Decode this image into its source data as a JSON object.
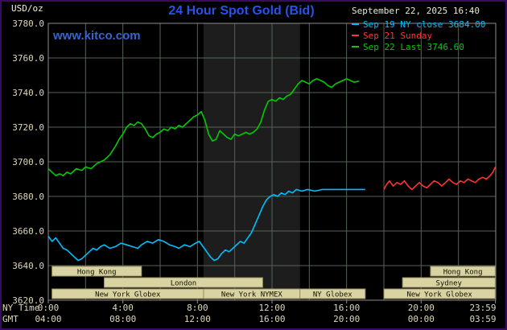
{
  "header": {
    "units_label": "USD/oz",
    "title": "24 Hour Spot Gold (Bid)",
    "datetime": "September 22, 2025 16:40",
    "watermark": "www.kitco.com"
  },
  "axes": {
    "ny_time_label": "NY Time",
    "gmt_label": "GMT"
  },
  "legend": [
    {
      "label": "Sep 19 NY close 3684.00",
      "color": "#00bfff"
    },
    {
      "label": "Sep 21 Sunday",
      "color": "#ff3333"
    },
    {
      "label": "Sep 22 Last 3746.60",
      "color": "#00cc00"
    }
  ],
  "chart_data": {
    "type": "line",
    "title": "24 Hour Spot Gold (Bid)",
    "xlabel": "NY Time / GMT",
    "ylabel": "USD/oz",
    "ylim": [
      3620,
      3780
    ],
    "xlim_hours": [
      0,
      24
    ],
    "grid": {
      "x_step_hours": 2,
      "y_step": 20,
      "color": "#566256",
      "frame_color": "#8d8d8d"
    },
    "legend_position": "top-right",
    "y_ticks": [
      {
        "value": 3780,
        "label": "3780.0"
      },
      {
        "value": 3760,
        "label": "3760.0"
      },
      {
        "value": 3740,
        "label": "3740.0"
      },
      {
        "value": 3720,
        "label": "3720.0"
      },
      {
        "value": 3700,
        "label": "3700.0"
      },
      {
        "value": 3680,
        "label": "3680.0"
      },
      {
        "value": 3660,
        "label": "3660.0"
      },
      {
        "value": 3640,
        "label": "3640.0"
      },
      {
        "value": 3620,
        "label": "3620.0"
      }
    ],
    "x_ticks": [
      {
        "hour": 0,
        "ny": "0:00",
        "gmt": "04:00"
      },
      {
        "hour": 4,
        "ny": "4:00",
        "gmt": "08:00"
      },
      {
        "hour": 8,
        "ny": "8:00",
        "gmt": "12:00"
      },
      {
        "hour": 12,
        "ny": "12:00",
        "gmt": "16:00"
      },
      {
        "hour": 16,
        "ny": "16:00",
        "gmt": "20:00"
      },
      {
        "hour": 20,
        "ny": "20:00",
        "gmt": "00:00"
      },
      {
        "hour": 23.983,
        "ny": "23:59",
        "gmt": "03:59"
      }
    ],
    "nymex_band": {
      "start_hour": 8.33,
      "end_hour": 13.5,
      "color": "#1d1d1d"
    },
    "sessions": [
      {
        "label": "Hong Kong",
        "row": 0,
        "start": 0.2,
        "end": 5.0
      },
      {
        "label": "Hong Kong",
        "row": 0,
        "start": 20.5,
        "end": 23.97
      },
      {
        "label": "London",
        "row": 1,
        "start": 3.0,
        "end": 11.5
      },
      {
        "label": "Sydney",
        "row": 1,
        "start": 19.0,
        "end": 23.97
      },
      {
        "label": "New York Globex",
        "row": 2,
        "start": 0.2,
        "end": 8.33
      },
      {
        "label": "New York NYMEX",
        "row": 2,
        "start": 8.33,
        "end": 13.5
      },
      {
        "label": "NY Globex",
        "row": 2,
        "start": 13.5,
        "end": 17.0
      },
      {
        "label": "New York Globex",
        "row": 2,
        "start": 18.0,
        "end": 23.97
      }
    ],
    "session_style": {
      "fill": "#d9d3a3",
      "stroke": "#97905e",
      "text": "#111100"
    },
    "series": [
      {
        "id": "sep19",
        "name": "Sep 19 NY close",
        "close_value": 3684.0,
        "color": "#00bfff",
        "points": [
          [
            0,
            3657
          ],
          [
            0.2,
            3654
          ],
          [
            0.4,
            3656
          ],
          [
            0.6,
            3653
          ],
          [
            0.8,
            3650
          ],
          [
            1,
            3649
          ],
          [
            1.2,
            3647
          ],
          [
            1.4,
            3645
          ],
          [
            1.6,
            3643
          ],
          [
            1.8,
            3644
          ],
          [
            2,
            3646
          ],
          [
            2.2,
            3648
          ],
          [
            2.4,
            3650
          ],
          [
            2.6,
            3649
          ],
          [
            2.8,
            3651
          ],
          [
            3,
            3652
          ],
          [
            3.3,
            3650
          ],
          [
            3.6,
            3651
          ],
          [
            3.9,
            3653
          ],
          [
            4.2,
            3652
          ],
          [
            4.5,
            3651
          ],
          [
            4.8,
            3650
          ],
          [
            5,
            3652
          ],
          [
            5.3,
            3654
          ],
          [
            5.6,
            3653
          ],
          [
            5.9,
            3655
          ],
          [
            6.2,
            3654
          ],
          [
            6.5,
            3652
          ],
          [
            6.8,
            3651
          ],
          [
            7,
            3650
          ],
          [
            7.3,
            3652
          ],
          [
            7.6,
            3651
          ],
          [
            7.9,
            3653
          ],
          [
            8.1,
            3654
          ],
          [
            8.3,
            3651
          ],
          [
            8.5,
            3648
          ],
          [
            8.7,
            3645
          ],
          [
            8.9,
            3643
          ],
          [
            9.1,
            3644
          ],
          [
            9.3,
            3647
          ],
          [
            9.5,
            3649
          ],
          [
            9.7,
            3648
          ],
          [
            9.9,
            3650
          ],
          [
            10.1,
            3652
          ],
          [
            10.3,
            3654
          ],
          [
            10.5,
            3653
          ],
          [
            10.7,
            3656
          ],
          [
            10.9,
            3659
          ],
          [
            11.1,
            3664
          ],
          [
            11.3,
            3669
          ],
          [
            11.5,
            3674
          ],
          [
            11.7,
            3678
          ],
          [
            11.9,
            3680
          ],
          [
            12.1,
            3681
          ],
          [
            12.3,
            3680
          ],
          [
            12.5,
            3682
          ],
          [
            12.7,
            3681
          ],
          [
            12.9,
            3683
          ],
          [
            13.1,
            3682
          ],
          [
            13.3,
            3684
          ],
          [
            13.6,
            3683
          ],
          [
            13.9,
            3684
          ],
          [
            14.3,
            3683
          ],
          [
            14.7,
            3684
          ],
          [
            15.1,
            3684
          ],
          [
            15.6,
            3684
          ],
          [
            16.1,
            3684
          ],
          [
            16.6,
            3684
          ],
          [
            17,
            3684
          ]
        ]
      },
      {
        "id": "sep21",
        "name": "Sep 21 Sunday",
        "color": "#ff3333",
        "points": [
          [
            18,
            3684
          ],
          [
            18.15,
            3687
          ],
          [
            18.3,
            3689
          ],
          [
            18.5,
            3686
          ],
          [
            18.7,
            3688
          ],
          [
            18.9,
            3687
          ],
          [
            19.1,
            3689
          ],
          [
            19.3,
            3686
          ],
          [
            19.5,
            3684
          ],
          [
            19.7,
            3686
          ],
          [
            19.9,
            3688
          ],
          [
            20.1,
            3686
          ],
          [
            20.3,
            3685
          ],
          [
            20.5,
            3687
          ],
          [
            20.7,
            3689
          ],
          [
            20.9,
            3688
          ],
          [
            21.1,
            3686
          ],
          [
            21.3,
            3688
          ],
          [
            21.5,
            3690
          ],
          [
            21.7,
            3688
          ],
          [
            21.9,
            3687
          ],
          [
            22.1,
            3689
          ],
          [
            22.3,
            3688
          ],
          [
            22.5,
            3690
          ],
          [
            22.7,
            3689
          ],
          [
            22.9,
            3688
          ],
          [
            23.1,
            3690
          ],
          [
            23.3,
            3691
          ],
          [
            23.5,
            3690
          ],
          [
            23.7,
            3692
          ],
          [
            23.85,
            3694
          ],
          [
            23.98,
            3697
          ]
        ]
      },
      {
        "id": "sep22",
        "name": "Sep 22 Last",
        "last_value": 3746.6,
        "color": "#00cc00",
        "points": [
          [
            0,
            3696
          ],
          [
            0.2,
            3694
          ],
          [
            0.4,
            3692
          ],
          [
            0.6,
            3693
          ],
          [
            0.8,
            3692
          ],
          [
            1,
            3694
          ],
          [
            1.2,
            3693
          ],
          [
            1.5,
            3696
          ],
          [
            1.8,
            3695
          ],
          [
            2,
            3697
          ],
          [
            2.3,
            3696
          ],
          [
            2.6,
            3699
          ],
          [
            3,
            3701
          ],
          [
            3.3,
            3704
          ],
          [
            3.6,
            3709
          ],
          [
            3.8,
            3713
          ],
          [
            4,
            3716
          ],
          [
            4.2,
            3720
          ],
          [
            4.4,
            3722
          ],
          [
            4.6,
            3721
          ],
          [
            4.8,
            3723
          ],
          [
            5,
            3722
          ],
          [
            5.2,
            3719
          ],
          [
            5.4,
            3715
          ],
          [
            5.6,
            3714
          ],
          [
            5.8,
            3716
          ],
          [
            6,
            3717
          ],
          [
            6.2,
            3719
          ],
          [
            6.4,
            3718
          ],
          [
            6.6,
            3720
          ],
          [
            6.8,
            3719
          ],
          [
            7,
            3721
          ],
          [
            7.2,
            3720
          ],
          [
            7.4,
            3722
          ],
          [
            7.6,
            3724
          ],
          [
            7.8,
            3726
          ],
          [
            8,
            3727
          ],
          [
            8.2,
            3729
          ],
          [
            8.4,
            3724
          ],
          [
            8.6,
            3716
          ],
          [
            8.8,
            3712
          ],
          [
            9,
            3713
          ],
          [
            9.2,
            3718
          ],
          [
            9.4,
            3716
          ],
          [
            9.6,
            3714
          ],
          [
            9.8,
            3713
          ],
          [
            10,
            3716
          ],
          [
            10.2,
            3715
          ],
          [
            10.4,
            3716
          ],
          [
            10.6,
            3717
          ],
          [
            10.8,
            3716
          ],
          [
            11,
            3717
          ],
          [
            11.2,
            3719
          ],
          [
            11.4,
            3723
          ],
          [
            11.6,
            3730
          ],
          [
            11.8,
            3735
          ],
          [
            12,
            3736
          ],
          [
            12.2,
            3735
          ],
          [
            12.4,
            3737
          ],
          [
            12.6,
            3736
          ],
          [
            12.8,
            3738
          ],
          [
            13,
            3739
          ],
          [
            13.2,
            3742
          ],
          [
            13.4,
            3745
          ],
          [
            13.6,
            3747
          ],
          [
            13.8,
            3746
          ],
          [
            14,
            3745
          ],
          [
            14.2,
            3747
          ],
          [
            14.4,
            3748
          ],
          [
            14.6,
            3747
          ],
          [
            14.8,
            3746
          ],
          [
            15,
            3744
          ],
          [
            15.2,
            3743
          ],
          [
            15.4,
            3745
          ],
          [
            15.6,
            3746
          ],
          [
            15.8,
            3747
          ],
          [
            16,
            3748
          ],
          [
            16.2,
            3747
          ],
          [
            16.4,
            3746
          ],
          [
            16.67,
            3746.6
          ]
        ]
      }
    ]
  }
}
